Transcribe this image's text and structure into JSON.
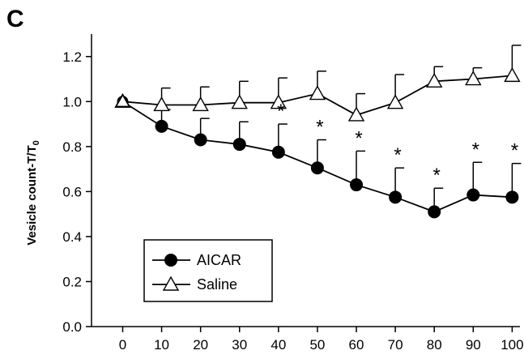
{
  "panel_label": "C",
  "chart_data": {
    "type": "line",
    "title": "",
    "xlabel": "",
    "ylabel": "Vesicle count-T/T",
    "ylabel_subscript": "0",
    "x": [
      0,
      10,
      20,
      30,
      40,
      50,
      60,
      70,
      80,
      90,
      100
    ],
    "x_ticks": [
      "0",
      "10",
      "20",
      "30",
      "40",
      "50",
      "60",
      "70",
      "80",
      "90",
      "100"
    ],
    "y_ticks": [
      "0.0",
      "0.2",
      "0.4",
      "0.6",
      "0.8",
      "1.0",
      "1.2"
    ],
    "ylim": [
      0.0,
      1.3
    ],
    "grid": false,
    "legend_position": "bottom-left",
    "series": [
      {
        "name": "AICAR",
        "marker": "filled-circle",
        "color": "#000000",
        "values": [
          1.0,
          0.89,
          0.83,
          0.81,
          0.775,
          0.705,
          0.63,
          0.575,
          0.51,
          0.585,
          0.575
        ],
        "error_upper": [
          0.0,
          0.075,
          0.095,
          0.1,
          0.125,
          0.125,
          0.15,
          0.13,
          0.105,
          0.145,
          0.15
        ],
        "significance": [
          "",
          "",
          "",
          "",
          "*",
          "*",
          "*",
          "*",
          "*",
          "*",
          "*"
        ]
      },
      {
        "name": "Saline",
        "marker": "open-triangle",
        "color": "#000000",
        "values": [
          1.0,
          0.985,
          0.985,
          0.995,
          0.995,
          1.035,
          0.94,
          0.995,
          1.09,
          1.1,
          1.115
        ],
        "error_upper": [
          0.0,
          0.075,
          0.08,
          0.095,
          0.11,
          0.1,
          0.095,
          0.125,
          0.065,
          0.05,
          0.135
        ],
        "significance": [
          "",
          "",
          "",
          "",
          "",
          "",
          "",
          "",
          "",
          "",
          ""
        ]
      }
    ]
  }
}
